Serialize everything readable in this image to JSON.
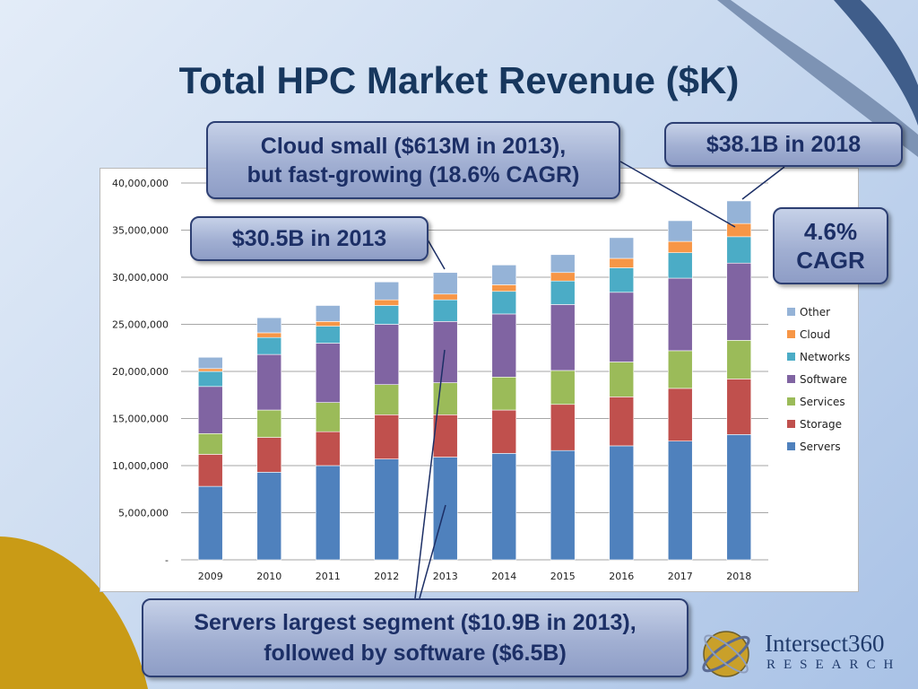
{
  "title": "Total HPC Market Revenue ($K)",
  "callouts": {
    "cloud": "Cloud small ($613M in 2013),\nbut fast-growing (18.6% CAGR)",
    "y2013": "$30.5B in 2013",
    "y2018": "$38.1B in 2018",
    "cagr": "4.6%\nCAGR",
    "servers": "Servers largest segment ($10.9B in 2013),\nfollowed by software ($6.5B)"
  },
  "logo": {
    "name": "Intersect360",
    "sub": "RESEARCH"
  },
  "colors": {
    "Servers": "#4f81bd",
    "Storage": "#c0504d",
    "Services": "#9bbb59",
    "Software": "#8064a2",
    "Networks": "#4bacc6",
    "Cloud": "#f79646",
    "Other": "#95b3d7"
  },
  "chart_data": {
    "type": "bar",
    "stacked": true,
    "title": "",
    "categories": [
      "2009",
      "2010",
      "2011",
      "2012",
      "2013",
      "2014",
      "2015",
      "2016",
      "2017",
      "2018"
    ],
    "series": [
      {
        "name": "Servers",
        "values": [
          7800000,
          9300000,
          10000000,
          10700000,
          10900000,
          11300000,
          11600000,
          12100000,
          12600000,
          13300000
        ]
      },
      {
        "name": "Storage",
        "values": [
          3400000,
          3700000,
          3600000,
          4700000,
          4500000,
          4600000,
          4900000,
          5200000,
          5600000,
          5900000
        ]
      },
      {
        "name": "Services",
        "values": [
          2200000,
          2900000,
          3100000,
          3200000,
          3400000,
          3500000,
          3600000,
          3700000,
          4000000,
          4100000
        ]
      },
      {
        "name": "Software",
        "values": [
          5000000,
          5900000,
          6300000,
          6400000,
          6500000,
          6700000,
          7000000,
          7400000,
          7700000,
          8200000
        ]
      },
      {
        "name": "Networks",
        "values": [
          1600000,
          1800000,
          1800000,
          2000000,
          2300000,
          2400000,
          2500000,
          2600000,
          2700000,
          2800000
        ]
      },
      {
        "name": "Cloud",
        "values": [
          300000,
          500000,
          500000,
          600000,
          613000,
          700000,
          900000,
          1000000,
          1200000,
          1400000
        ]
      },
      {
        "name": "Other",
        "values": [
          1200000,
          1600000,
          1700000,
          1900000,
          2287000,
          2100000,
          1900000,
          2200000,
          2200000,
          2400000
        ]
      }
    ],
    "ylim": [
      0,
      40000000
    ],
    "yticks": [
      "-",
      "5,000,000",
      "10,000,000",
      "15,000,000",
      "20,000,000",
      "25,000,000",
      "30,000,000",
      "35,000,000",
      "40,000,000"
    ],
    "ytick_values": [
      0,
      5000000,
      10000000,
      15000000,
      20000000,
      25000000,
      30000000,
      35000000,
      40000000
    ],
    "legend_order": [
      "Other",
      "Cloud",
      "Networks",
      "Software",
      "Services",
      "Storage",
      "Servers"
    ],
    "legend_position": "right",
    "grid": true
  }
}
